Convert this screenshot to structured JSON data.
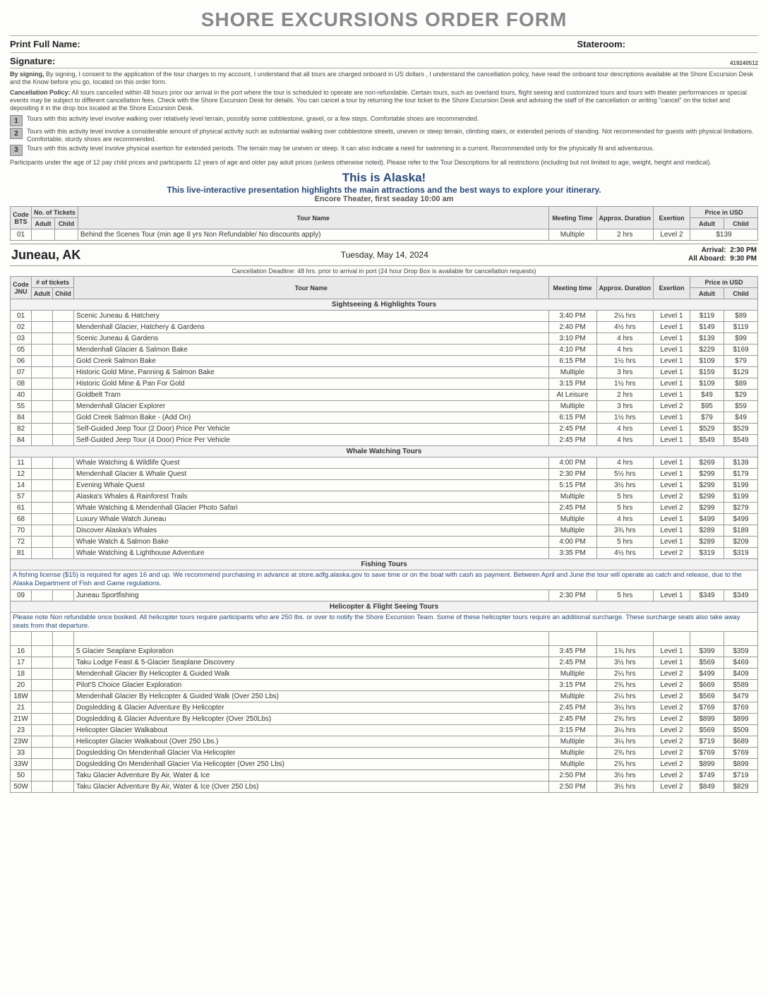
{
  "title": "SHORE EXCURSIONS ORDER FORM",
  "labels": {
    "print_name": "Print Full Name:",
    "stateroom": "Stateroom:",
    "signature": "Signature:",
    "form_id": "419240512"
  },
  "consent": "By signing, I consent to the application of the tour charges to my account, I understand that all tours are charged onboard in US dollars , I understand the cancellation policy, have read the onboard tour descriptions available at the Shore Excursion Desk and the Know before you go, located on this order form.",
  "cancel_policy_label": "Cancellation Policy:",
  "cancel_policy": " All tours cancelled within 48 hours prior our arrival in the port where the tour is scheduled to operate are non-refundable. Certain tours, such as overland tours, flight seeing and customized tours and tours with theater performances or special events may be subject to different cancellation fees. Check with the Shore Excursion Desk for details. You can cancel a tour by returning the tour ticket to the Shore Excursion Desk and advising the staff of the cancellation or writing \"cancel\" on the ticket and depositing it in the drop box located at the Shore Excursion Desk.",
  "levels": [
    {
      "n": "1",
      "d": "Tours with this activity level involve walking over relatively level terrain, possibly some cobblestone, gravel, or a few steps. Comfortable shoes are recommended."
    },
    {
      "n": "2",
      "d": "Tours with this activity level involve a considerable amount of physical activity such as substantial walking over cobblestone streets, uneven or steep terrain, climbing stairs, or extended periods of standing. Not recommended for guests with physical limitations. Comfortable, sturdy shoes are recommended."
    },
    {
      "n": "3",
      "d": "Tours with this activity level involve physical exertion for extended periods. The terrain may be uneven or steep. It can also indicate a need for swimming in a current. Recommended only for the physically fit and adventurous."
    }
  ],
  "age_note": "Participants under the age of 12 pay child prices and participants 12 years of age and older pay adult prices (unless otherwise noted). Please refer to the Tour Descriptions for all restrictions (including but not limited to age, weight, height and medical).",
  "promo": {
    "t": "This is Alaska!",
    "s": "This live-interactive presentation highlights the main attractions and the best ways to explore your itinerary.",
    "v": "Encore Theater, first seaday 10:00 am"
  },
  "hdr": {
    "code": "Code",
    "tickets": "No. of Tickets",
    "adult": "Adult",
    "child": "Child",
    "name": "Tour Name",
    "mt": "Meeting Time",
    "dur": "Approx. Duration",
    "ex": "Exertion",
    "price": "Price in USD",
    "tickets2": "# of tickets"
  },
  "bts": {
    "code_port": "BTS",
    "code": "01",
    "name": "Behind the Scenes Tour (min age 8 yrs  Non Refundable/ No discounts apply)",
    "mt": "Multiple",
    "dur": "2 hrs",
    "ex": "Level 2",
    "price": "$139"
  },
  "port": {
    "name": "Juneau, AK",
    "date": "Tuesday, May 14, 2024",
    "arrival_lbl": "Arrival:",
    "arrival": "2:30 PM",
    "aboard_lbl": "All Aboard:",
    "aboard": "9:30 PM",
    "code": "JNU",
    "cancel": "Cancellation Deadline:  48 hrs. prior to arrival in port (24 hour Drop Box is available for cancellation requests)"
  },
  "sections": {
    "sight": "Sightseeing & Highlights Tours",
    "whale": "Whale Watching Tours",
    "fish": "Fishing Tours",
    "heli": "Helicopter & Flight Seeing Tours"
  },
  "fish_note": "A fishing license ($15) is required for ages 16 and up. We recommend purchasing in advance at store.adfg.alaska.gov to save time or on the boat with cash as payment.\nBetween April and June the tour will operate as catch and release, due to the Alaska Department of Fish and Game regulations.",
  "heli_note": "Please note Non refundable once booked. All helicopter tours require participants who are 250 lbs. or over to notify the Shore Excursion Team. Some of these helicopter tours require an additional surcharge. These surcharge seats also take away seats from that departure.",
  "sight_rows": [
    {
      "c": "01",
      "n": "Scenic Juneau & Hatchery",
      "mt": "3:40 PM",
      "d": "2¼ hrs",
      "e": "Level 1",
      "pa": "$119",
      "pc": "$89"
    },
    {
      "c": "02",
      "n": "Mendenhall Glacier, Hatchery & Gardens",
      "mt": "2:40 PM",
      "d": "4½ hrs",
      "e": "Level 1",
      "pa": "$149",
      "pc": "$119"
    },
    {
      "c": "03",
      "n": "Scenic Juneau & Gardens",
      "mt": "3:10 PM",
      "d": "4 hrs",
      "e": "Level 1",
      "pa": "$139",
      "pc": "$99"
    },
    {
      "c": "05",
      "n": "Mendenhall Glacier & Salmon Bake",
      "mt": "4:10 PM",
      "d": "4 hrs",
      "e": "Level 1",
      "pa": "$229",
      "pc": "$169"
    },
    {
      "c": "06",
      "n": "Gold Creek Salmon Bake",
      "mt": "6:15 PM",
      "d": "1½ hrs",
      "e": "Level 1",
      "pa": "$109",
      "pc": "$79"
    },
    {
      "c": "07",
      "n": "Historic Gold Mine, Panning & Salmon Bake",
      "mt": "Multiple",
      "d": "3 hrs",
      "e": "Level 1",
      "pa": "$159",
      "pc": "$129"
    },
    {
      "c": "08",
      "n": "Historic Gold Mine & Pan For Gold",
      "mt": "3:15 PM",
      "d": "1½ hrs",
      "e": "Level 1",
      "pa": "$109",
      "pc": "$89"
    },
    {
      "c": "40",
      "n": "Goldbelt Tram",
      "mt": "At Leisure",
      "d": "2 hrs",
      "e": "Level 1",
      "pa": "$49",
      "pc": "$29"
    },
    {
      "c": "55",
      "n": "Mendenhall Glacier Explorer",
      "mt": "Multiple",
      "d": "3 hrs",
      "e": "Level 2",
      "pa": "$95",
      "pc": "$59"
    },
    {
      "c": "84",
      "n": "Gold Creek Salmon Bake - (Add On)",
      "mt": "6:15 PM",
      "d": "1½ hrs",
      "e": "Level 1",
      "pa": "$79",
      "pc": "$49"
    },
    {
      "c": "82",
      "n": "Self-Guided Jeep Tour (2 Door) Price Per Vehicle",
      "mt": "2:45 PM",
      "d": "4 hrs",
      "e": "Level 1",
      "pa": "$529",
      "pc": "$529"
    },
    {
      "c": "84",
      "n": "Self-Guided Jeep Tour (4 Door) Price Per Vehicle",
      "mt": "2:45 PM",
      "d": "4 hrs",
      "e": "Level 1",
      "pa": "$549",
      "pc": "$549"
    }
  ],
  "whale_rows": [
    {
      "c": "11",
      "n": "Whale Watching & Wildlife Quest",
      "mt": "4:00 PM",
      "d": "4 hrs",
      "e": "Level 1",
      "pa": "$269",
      "pc": "$139"
    },
    {
      "c": "12",
      "n": "Mendenhall Glacier & Whale Quest",
      "mt": "2:30 PM",
      "d": "5½ hrs",
      "e": "Level 1",
      "pa": "$299",
      "pc": "$179"
    },
    {
      "c": "14",
      "n": "Evening Whale Quest",
      "mt": "5:15 PM",
      "d": "3½ hrs",
      "e": "Level 1",
      "pa": "$299",
      "pc": "$199"
    },
    {
      "c": "57",
      "n": "Alaska's Whales & Rainforest Trails",
      "mt": "Multiple",
      "d": "5 hrs",
      "e": "Level 2",
      "pa": "$299",
      "pc": "$199"
    },
    {
      "c": "61",
      "n": "Whale Watching & Mendenhall Glacier Photo Safari",
      "mt": "2:45 PM",
      "d": "5 hrs",
      "e": "Level 2",
      "pa": "$299",
      "pc": "$279"
    },
    {
      "c": "68",
      "n": "Luxury Whale Watch Juneau",
      "mt": "Multiple",
      "d": "4 hrs",
      "e": "Level 1",
      "pa": "$499",
      "pc": "$499"
    },
    {
      "c": "70",
      "n": "Discover Alaska's Whales",
      "mt": "Multiple",
      "d": "3¾ hrs",
      "e": "Level 1",
      "pa": "$289",
      "pc": "$189"
    },
    {
      "c": "72",
      "n": "Whale Watch & Salmon Bake",
      "mt": "4:00 PM",
      "d": "5 hrs",
      "e": "Level 1",
      "pa": "$289",
      "pc": "$209"
    },
    {
      "c": "81",
      "n": "Whale Watching & Lighthouse Adventure",
      "mt": "3:35 PM",
      "d": "4½ hrs",
      "e": "Level 2",
      "pa": "$319",
      "pc": "$319"
    }
  ],
  "fish_rows": [
    {
      "c": "09",
      "n": "Juneau Sportfishing",
      "mt": "2:30 PM",
      "d": "5 hrs",
      "e": "Level 1",
      "pa": "$349",
      "pc": "$349"
    }
  ],
  "heli_rows": [
    {
      "c": "16",
      "n": "5 Glacier Seaplane Exploration",
      "mt": "3:45 PM",
      "d": "1¾ hrs",
      "e": "Level 1",
      "pa": "$399",
      "pc": "$359"
    },
    {
      "c": "17",
      "n": "Taku Lodge Feast & 5-Glacier Seaplane Discovery",
      "mt": "2:45 PM",
      "d": "3½ hrs",
      "e": "Level 1",
      "pa": "$569",
      "pc": "$469"
    },
    {
      "c": "18",
      "n": "Mendenhall Glacier By Helicopter & Guided Walk",
      "mt": "Multiple",
      "d": "2¼ hrs",
      "e": "Level 2",
      "pa": "$499",
      "pc": "$409"
    },
    {
      "c": "20",
      "n": "Pilot'S Choice Glacier Exploration",
      "mt": "3:15 PM",
      "d": "2¾ hrs",
      "e": "Level 2",
      "pa": "$669",
      "pc": "$589"
    },
    {
      "c": "18W",
      "n": "Mendenhall Glacier By Helicopter & Guided Walk (Over 250 Lbs)",
      "mt": "Multiple",
      "d": "2¼ hrs",
      "e": "Level 2",
      "pa": "$569",
      "pc": "$479"
    },
    {
      "c": "21",
      "n": "Dogsledding & Glacier Adventure By Helicopter",
      "mt": "2:45 PM",
      "d": "3¼ hrs",
      "e": "Level 2",
      "pa": "$769",
      "pc": "$769"
    },
    {
      "c": "21W",
      "n": "Dogsledding & Glacier Adventure By Helicopter (Over 250Lbs)",
      "mt": "2:45 PM",
      "d": "2¾ hrs",
      "e": "Level 2",
      "pa": "$899",
      "pc": "$899"
    },
    {
      "c": "23",
      "n": "Helicopter Glacier Walkabout",
      "mt": "3:15 PM",
      "d": "3¼ hrs",
      "e": "Level 2",
      "pa": "$569",
      "pc": "$509"
    },
    {
      "c": "23W",
      "n": "Helicopter Glacier Walkabout (Over 250 Lbs.)",
      "mt": "Multiple",
      "d": "3¼ hrs",
      "e": "Level 2",
      "pa": "$719",
      "pc": "$689"
    },
    {
      "c": "33",
      "n": "Dogsledding On Mendenhall Glacier Via Helicopter",
      "mt": "Multiple",
      "d": "2¾ hrs",
      "e": "Level 2",
      "pa": "$769",
      "pc": "$769"
    },
    {
      "c": "33W",
      "n": "Dogsledding On Mendenhall Glacier Via Helicopter (Over 250 Lbs)",
      "mt": "Multiple",
      "d": "2¾ hrs",
      "e": "Level 2",
      "pa": "$899",
      "pc": "$899"
    },
    {
      "c": "50",
      "n": "Taku Glacier Adventure By Air, Water & Ice",
      "mt": "2:50 PM",
      "d": "3½ hrs",
      "e": "Level 2",
      "pa": "$749",
      "pc": "$719"
    },
    {
      "c": "50W",
      "n": "Taku Glacier Adventure By Air, Water & Ice (Over 250 Lbs)",
      "mt": "2:50 PM",
      "d": "3½ hrs",
      "e": "Level 2",
      "pa": "$849",
      "pc": "$829"
    }
  ]
}
